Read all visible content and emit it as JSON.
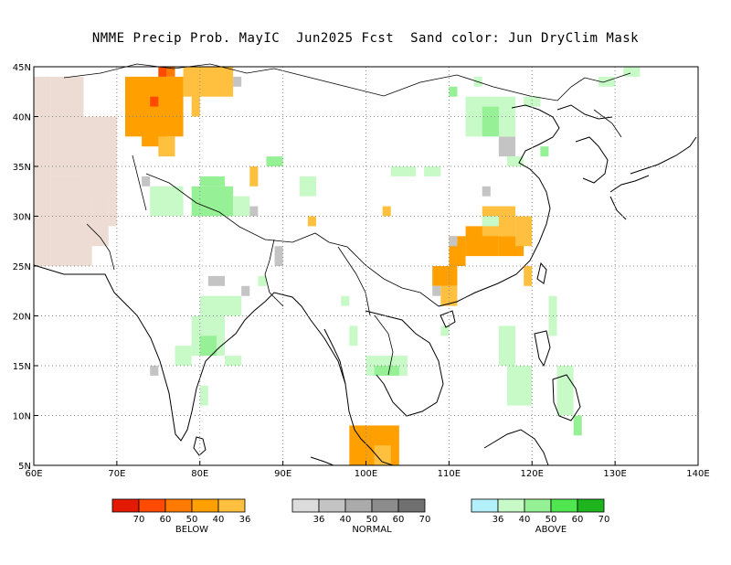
{
  "title": "NMME Precip Prob. MayIC  Jun2025 Fcst  Sand color: Jun DryClim Mask",
  "axes": {
    "lon_labels": [
      "60E",
      "70E",
      "80E",
      "90E",
      "100E",
      "110E",
      "120E",
      "130E",
      "140E"
    ],
    "lat_labels": [
      "5N",
      "10N",
      "15N",
      "20N",
      "25N",
      "30N",
      "35N",
      "40N",
      "45N"
    ],
    "lon_range": [
      60,
      140
    ],
    "lat_range": [
      5,
      45
    ],
    "grid": "dotted"
  },
  "colors": {
    "dry_mask": "#ecdcd3",
    "below": [
      "#e31a00",
      "#ff4a00",
      "#ff7a00",
      "#ffa000",
      "#ffc040"
    ],
    "normal": [
      "#dcdcdc",
      "#c4c4c4",
      "#aaaaaa",
      "#8c8c8c",
      "#707070"
    ],
    "above": [
      "#b4f0fa",
      "#c8fac8",
      "#96f096",
      "#50e650",
      "#1eb41e"
    ]
  },
  "legend": {
    "below": {
      "title": "BELOW",
      "numbers": [
        "70",
        "60",
        "50",
        "40",
        "36"
      ]
    },
    "normal": {
      "title": "NORMAL",
      "numbers": [
        "36",
        "40",
        "50",
        "60",
        "70"
      ]
    },
    "above": {
      "title": "ABOVE",
      "numbers": [
        "36",
        "40",
        "50",
        "60",
        "70"
      ]
    }
  },
  "map_cells": {
    "dry_mask": [
      [
        62,
        44,
        66,
        34
      ],
      [
        66,
        40,
        70,
        32
      ],
      [
        62,
        34,
        67,
        25
      ],
      [
        67,
        34,
        69,
        27
      ],
      [
        60,
        44,
        62,
        25
      ],
      [
        69,
        32,
        70,
        29
      ]
    ],
    "below": [
      [
        71,
        44,
        78,
        38,
        3
      ],
      [
        73,
        40,
        76,
        37,
        3
      ],
      [
        78,
        45,
        84,
        42,
        4
      ],
      [
        79,
        43,
        80,
        40,
        4
      ],
      [
        75,
        38,
        77,
        36,
        4
      ],
      [
        76,
        45,
        77,
        44,
        2
      ],
      [
        75,
        45,
        76,
        44,
        1
      ],
      [
        74,
        42,
        75,
        41,
        1
      ],
      [
        86,
        35,
        87,
        33,
        4
      ],
      [
        93,
        30,
        94,
        29,
        4
      ],
      [
        102,
        31,
        103,
        30,
        4
      ],
      [
        108,
        25,
        111,
        23,
        3
      ],
      [
        110,
        28,
        112,
        25,
        3
      ],
      [
        112,
        29,
        116,
        26,
        3
      ],
      [
        114,
        31,
        118,
        28,
        4
      ],
      [
        116,
        28,
        119,
        26,
        3
      ],
      [
        118,
        30,
        120,
        27,
        4
      ],
      [
        119,
        25,
        120,
        23,
        4
      ],
      [
        109,
        23,
        111,
        21,
        4
      ],
      [
        98,
        9,
        104,
        5,
        3
      ],
      [
        101,
        7,
        103,
        5,
        4
      ]
    ],
    "normal": [
      [
        73,
        34,
        74,
        33,
        1
      ],
      [
        81,
        24,
        83,
        23,
        1
      ],
      [
        85,
        23,
        86,
        22,
        1
      ],
      [
        89,
        27,
        90,
        25,
        1
      ],
      [
        86,
        31,
        87,
        30,
        1
      ],
      [
        84,
        44,
        85,
        43,
        1
      ],
      [
        110,
        28,
        111,
        27,
        1
      ],
      [
        114,
        33,
        115,
        32,
        1
      ],
      [
        116,
        38,
        118,
        36,
        1
      ],
      [
        108,
        23,
        109,
        22,
        1
      ],
      [
        74,
        15,
        75,
        14,
        1
      ]
    ],
    "above": [
      [
        74,
        33,
        78,
        30,
        1
      ],
      [
        79,
        33,
        84,
        30,
        2
      ],
      [
        80,
        34,
        83,
        33,
        2
      ],
      [
        84,
        32,
        86,
        30,
        1
      ],
      [
        88,
        36,
        90,
        35,
        2
      ],
      [
        92,
        34,
        94,
        32,
        1
      ],
      [
        103,
        35,
        106,
        34,
        1
      ],
      [
        107,
        35,
        109,
        34,
        1
      ],
      [
        112,
        42,
        118,
        38,
        1
      ],
      [
        114,
        41,
        116,
        38,
        2
      ],
      [
        110,
        43,
        111,
        42,
        2
      ],
      [
        113,
        44,
        114,
        43,
        1
      ],
      [
        117,
        36,
        119,
        35,
        1
      ],
      [
        80,
        22,
        85,
        20,
        1
      ],
      [
        79,
        20,
        83,
        16,
        1
      ],
      [
        80,
        18,
        82,
        16,
        2
      ],
      [
        77,
        17,
        79,
        15,
        1
      ],
      [
        80,
        13,
        81,
        11,
        1
      ],
      [
        83,
        16,
        85,
        15,
        1
      ],
      [
        87,
        24,
        88,
        23,
        1
      ],
      [
        97,
        22,
        98,
        21,
        1
      ],
      [
        98,
        19,
        99,
        17,
        1
      ],
      [
        100,
        16,
        105,
        14,
        1
      ],
      [
        101,
        15,
        104,
        14,
        2
      ],
      [
        109,
        19,
        110,
        18,
        1
      ],
      [
        114,
        30,
        116,
        29,
        1
      ],
      [
        116,
        19,
        118,
        15,
        1
      ],
      [
        117,
        15,
        120,
        11,
        1
      ],
      [
        122,
        22,
        123,
        18,
        1
      ],
      [
        123,
        15,
        125,
        10,
        1
      ],
      [
        125,
        10,
        126,
        8,
        2
      ],
      [
        131,
        45,
        133,
        44,
        1
      ],
      [
        119,
        42,
        121,
        41,
        1
      ],
      [
        128,
        44,
        130,
        43,
        1
      ],
      [
        121,
        37,
        122,
        36,
        2
      ]
    ]
  }
}
